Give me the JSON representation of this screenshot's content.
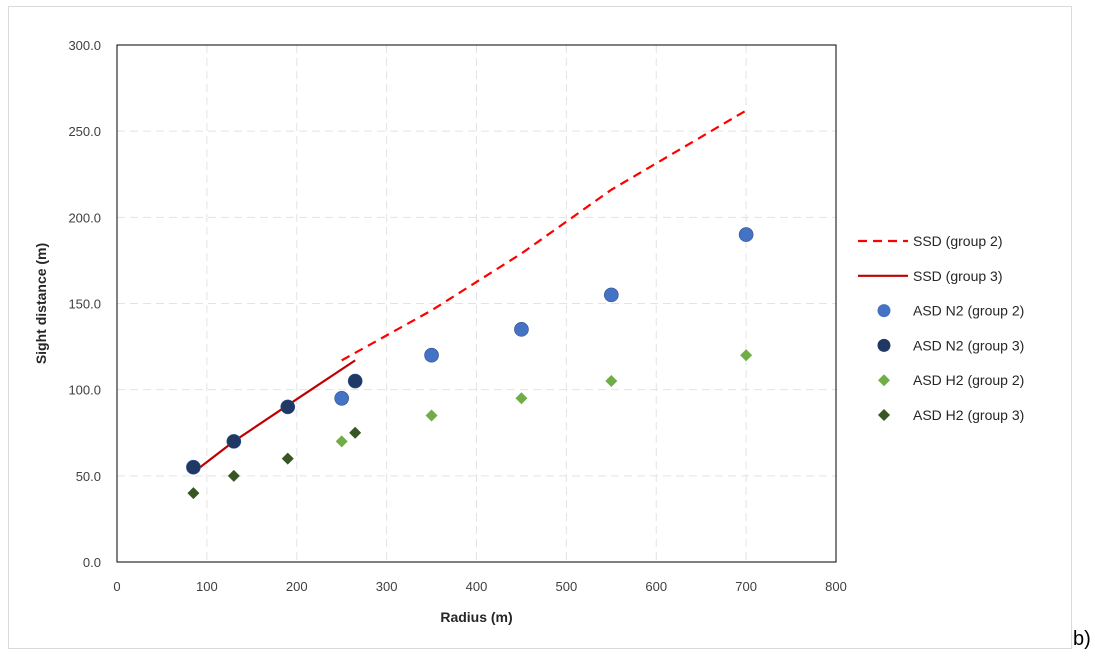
{
  "panel_label": "b)",
  "chart_data": {
    "type": "scatter",
    "title": "",
    "xlabel": "Radius (m)",
    "ylabel": "Sight distance (m)",
    "xlim": [
      0,
      800
    ],
    "ylim": [
      0,
      300
    ],
    "x_ticks": [
      0,
      100,
      200,
      300,
      400,
      500,
      600,
      700,
      800
    ],
    "y_ticks": [
      0,
      50,
      100,
      150,
      200,
      250,
      300
    ],
    "x_tick_labels": [
      "0",
      "100",
      "200",
      "300",
      "400",
      "500",
      "600",
      "700",
      "800"
    ],
    "y_tick_labels": [
      "0.0",
      "50.0",
      "100.0",
      "150.0",
      "200.0",
      "250.0",
      "300.0"
    ],
    "grid": true,
    "legend_position": "right",
    "series": [
      {
        "name": "SSD (group 2)",
        "kind": "line",
        "style": "dashed",
        "color": "#ff0000",
        "x": [
          250,
          350,
          450,
          550,
          700
        ],
        "y": [
          117,
          146,
          179,
          216,
          262
        ]
      },
      {
        "name": "SSD (group 3)",
        "kind": "line",
        "style": "solid",
        "color": "#c00000",
        "x": [
          85,
          130,
          190,
          265
        ],
        "y": [
          52,
          70,
          91,
          117
        ]
      },
      {
        "name": "ASD N2 (group 2)",
        "kind": "marker",
        "marker": "circle",
        "color": "#4472c4",
        "x": [
          250,
          350,
          450,
          550,
          700
        ],
        "y": [
          95,
          120,
          135,
          155,
          190
        ]
      },
      {
        "name": "ASD N2 (group 3)",
        "kind": "marker",
        "marker": "circle",
        "color": "#1f3864",
        "x": [
          85,
          130,
          190,
          265
        ],
        "y": [
          55,
          70,
          90,
          105
        ]
      },
      {
        "name": "ASD H2 (group 2)",
        "kind": "marker",
        "marker": "diamond",
        "color": "#70ad47",
        "x": [
          250,
          350,
          450,
          550,
          700
        ],
        "y": [
          70,
          85,
          95,
          105,
          120
        ]
      },
      {
        "name": "ASD H2 (group 3)",
        "kind": "marker",
        "marker": "diamond",
        "color": "#375623",
        "x": [
          85,
          130,
          190,
          265
        ],
        "y": [
          40,
          50,
          60,
          75
        ]
      }
    ]
  }
}
